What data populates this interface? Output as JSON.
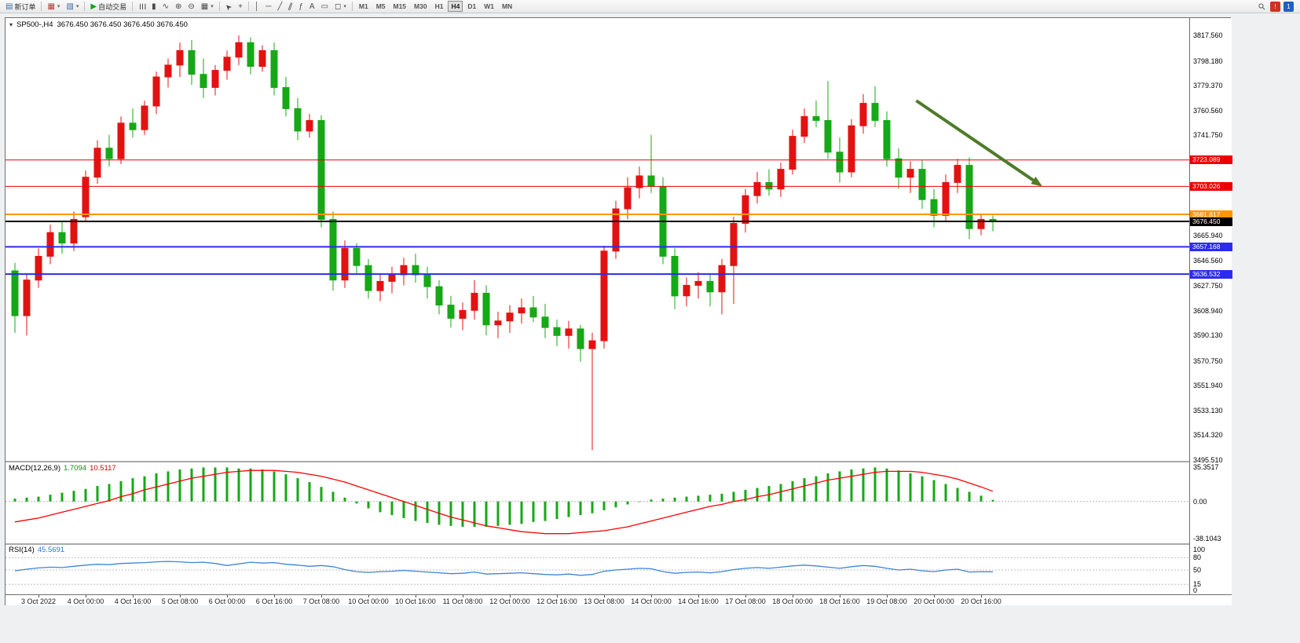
{
  "toolbar": {
    "items": [
      {
        "type": "button",
        "name": "new-order",
        "glyph": "▤",
        "glyph_color": "#3a6ea5",
        "label": "新订单"
      },
      {
        "type": "sep"
      },
      {
        "type": "button",
        "name": "new-chart",
        "glyph": "▦",
        "glyph_color": "#b03a2e",
        "dropdown": true
      },
      {
        "type": "button",
        "name": "profiles",
        "glyph": "▧",
        "glyph_color": "#3a6ea5",
        "dropdown": true
      },
      {
        "type": "sep"
      },
      {
        "type": "button",
        "name": "autotrading",
        "glyph": "▶",
        "glyph_color": "#18a018",
        "label": "自动交易"
      },
      {
        "type": "sep"
      },
      {
        "type": "button",
        "name": "bar-chart-mode",
        "glyph": "☰",
        "rot": 90
      },
      {
        "type": "button",
        "name": "candlestick-mode",
        "glyph": "▮"
      },
      {
        "type": "button",
        "name": "line-chart-mode",
        "glyph": "∿"
      },
      {
        "type": "button",
        "name": "zoom-in",
        "glyph": "⊕"
      },
      {
        "type": "button",
        "name": "zoom-out",
        "glyph": "⊖"
      },
      {
        "type": "button",
        "name": "tile-windows",
        "glyph": "▦",
        "dropdown": true
      },
      {
        "type": "sep"
      },
      {
        "type": "button",
        "name": "cursor",
        "glyph": "➤",
        "rot": -135
      },
      {
        "type": "button",
        "name": "crosshair",
        "glyph": "+"
      },
      {
        "type": "sep"
      },
      {
        "type": "button",
        "name": "vertical-line",
        "glyph": "│"
      },
      {
        "type": "button",
        "name": "horizontal-line",
        "glyph": "─"
      },
      {
        "type": "button",
        "name": "trendline",
        "glyph": "╱"
      },
      {
        "type": "button",
        "name": "equidistant-channel",
        "glyph": "∥",
        "rot": 20
      },
      {
        "type": "button",
        "name": "fibonacci",
        "glyph": "ƒ"
      },
      {
        "type": "button",
        "name": "text",
        "glyph": "A"
      },
      {
        "type": "button",
        "name": "text-label",
        "glyph": "▭"
      },
      {
        "type": "button",
        "name": "shapes",
        "glyph": "◻",
        "dropdown": true
      },
      {
        "type": "sep"
      }
    ],
    "timeframes": [
      "M1",
      "M5",
      "M15",
      "M30",
      "H1",
      "H4",
      "D1",
      "W1",
      "MN"
    ],
    "active_timeframe": "H4",
    "right_icons": [
      {
        "name": "search",
        "glyph": "⚲",
        "color": "#555"
      },
      {
        "name": "alert-red",
        "glyph": "!",
        "bg": "#d03020"
      },
      {
        "name": "community-blue",
        "glyph": "1",
        "bg": "#2060c0"
      }
    ]
  },
  "chart": {
    "title": "SP500-,H4",
    "ohlc_text": "3676.450 3676.450 3676.450 3676.450",
    "collapse_glyph": "▾"
  },
  "price_axis": {
    "grid_labels": [
      {
        "text": "3817.560",
        "price": 3817.56
      },
      {
        "text": "3798.180",
        "price": 3798.18
      },
      {
        "text": "3779.370",
        "price": 3779.37
      },
      {
        "text": "3760.560",
        "price": 3760.56
      },
      {
        "text": "3741.750",
        "price": 3741.75
      },
      {
        "text": "3665.940",
        "price": 3665.94
      },
      {
        "text": "3646.560",
        "price": 3646.56
      },
      {
        "text": "3627.750",
        "price": 3627.75
      },
      {
        "text": "3608.940",
        "price": 3608.94
      },
      {
        "text": "3590.130",
        "price": 3590.13
      },
      {
        "text": "3570.750",
        "price": 3570.75
      },
      {
        "text": "3551.940",
        "price": 3551.94
      },
      {
        "text": "3533.130",
        "price": 3533.13
      },
      {
        "text": "3514.320",
        "price": 3514.32
      },
      {
        "text": "3495.510",
        "price": 3495.51
      }
    ],
    "badges": [
      {
        "text": "3723.089",
        "price": 3723.089,
        "bg": "#ee0000"
      },
      {
        "text": "3703.026",
        "price": 3703.026,
        "bg": "#ee0000"
      },
      {
        "text": "3681.817",
        "price": 3681.817,
        "bg": "#ff9500"
      },
      {
        "text": "3676.450",
        "price": 3676.45,
        "bg": "#000000"
      },
      {
        "text": "3657.168",
        "price": 3657.168,
        "bg": "#2b2bef"
      },
      {
        "text": "3636.532",
        "price": 3636.532,
        "bg": "#2b2bef"
      }
    ]
  },
  "time_axis": {
    "labels": [
      {
        "text": "3 Oct 2022",
        "index": 2
      },
      {
        "text": "4 Oct 00:00",
        "index": 6
      },
      {
        "text": "4 Oct 16:00",
        "index": 10
      },
      {
        "text": "5 Oct 08:00",
        "index": 14
      },
      {
        "text": "6 Oct 00:00",
        "index": 18
      },
      {
        "text": "6 Oct 16:00",
        "index": 22
      },
      {
        "text": "7 Oct 08:00",
        "index": 26
      },
      {
        "text": "10 Oct 00:00",
        "index": 30
      },
      {
        "text": "10 Oct 16:00",
        "index": 34
      },
      {
        "text": "11 Oct 08:00",
        "index": 38
      },
      {
        "text": "12 Oct 00:00",
        "index": 42
      },
      {
        "text": "12 Oct 16:00",
        "index": 46
      },
      {
        "text": "13 Oct 08:00",
        "index": 50
      },
      {
        "text": "14 Oct 00:00",
        "index": 54
      },
      {
        "text": "14 Oct 16:00",
        "index": 58
      },
      {
        "text": "17 Oct 08:00",
        "index": 62
      },
      {
        "text": "18 Oct 00:00",
        "index": 66
      },
      {
        "text": "18 Oct 16:00",
        "index": 70
      },
      {
        "text": "19 Oct 08:00",
        "index": 74
      },
      {
        "text": "20 Oct 00:00",
        "index": 78
      },
      {
        "text": "20 Oct 16:00",
        "index": 82
      }
    ]
  },
  "chart_data": [
    {
      "type": "candlestick",
      "symbol": "SP500-",
      "timeframe": "H4",
      "current_price": 3676.45,
      "ylim": [
        3495.51,
        3817.56
      ],
      "up_color": "#e31212",
      "down_color": "#16a816",
      "ohlc": [
        [
          3639,
          3645,
          3592,
          3605
        ],
        [
          3605,
          3636,
          3590,
          3632
        ],
        [
          3632,
          3656,
          3626,
          3650
        ],
        [
          3650,
          3674,
          3644,
          3668
        ],
        [
          3668,
          3676,
          3652,
          3660
        ],
        [
          3660,
          3684,
          3654,
          3678
        ],
        [
          3680,
          3715,
          3676,
          3710
        ],
        [
          3710,
          3738,
          3705,
          3732
        ],
        [
          3732,
          3742,
          3718,
          3724
        ],
        [
          3724,
          3756,
          3720,
          3751
        ],
        [
          3751,
          3762,
          3740,
          3746
        ],
        [
          3746,
          3768,
          3742,
          3764
        ],
        [
          3764,
          3790,
          3758,
          3786
        ],
        [
          3786,
          3800,
          3778,
          3795
        ],
        [
          3795,
          3812,
          3786,
          3806
        ],
        [
          3806,
          3814,
          3780,
          3788
        ],
        [
          3788,
          3800,
          3770,
          3778
        ],
        [
          3778,
          3795,
          3772,
          3791
        ],
        [
          3791,
          3806,
          3784,
          3801
        ],
        [
          3801,
          3817.5,
          3795,
          3812
        ],
        [
          3812,
          3816,
          3788,
          3794
        ],
        [
          3794,
          3810,
          3790,
          3806
        ],
        [
          3806,
          3812,
          3772,
          3778
        ],
        [
          3778,
          3786,
          3756,
          3762
        ],
        [
          3762,
          3770,
          3738,
          3745
        ],
        [
          3745,
          3758,
          3740,
          3753
        ],
        [
          3753,
          3757,
          3672,
          3678
        ],
        [
          3678,
          3684,
          3624,
          3632
        ],
        [
          3632,
          3662,
          3626,
          3656
        ],
        [
          3656,
          3660,
          3636,
          3643
        ],
        [
          3643,
          3648,
          3618,
          3624
        ],
        [
          3624,
          3636,
          3616,
          3631
        ],
        [
          3631,
          3642,
          3622,
          3636
        ],
        [
          3636,
          3649,
          3628,
          3643
        ],
        [
          3643,
          3652,
          3630,
          3636
        ],
        [
          3636,
          3642,
          3618,
          3627
        ],
        [
          3627,
          3632,
          3606,
          3613
        ],
        [
          3613,
          3620,
          3596,
          3603
        ],
        [
          3603,
          3615,
          3594,
          3609
        ],
        [
          3609,
          3632,
          3602,
          3622
        ],
        [
          3622,
          3628,
          3590,
          3598
        ],
        [
          3598,
          3608,
          3588,
          3601
        ],
        [
          3601,
          3613,
          3592,
          3607
        ],
        [
          3607,
          3618,
          3599,
          3611
        ],
        [
          3611,
          3620,
          3600,
          3604
        ],
        [
          3604,
          3614,
          3588,
          3596
        ],
        [
          3596,
          3602,
          3582,
          3590
        ],
        [
          3590,
          3601,
          3580,
          3595
        ],
        [
          3595,
          3598,
          3570,
          3580
        ],
        [
          3580,
          3592,
          3503,
          3586
        ],
        [
          3586,
          3658,
          3580,
          3654
        ],
        [
          3654,
          3692,
          3648,
          3686
        ],
        [
          3686,
          3710,
          3678,
          3702
        ],
        [
          3702,
          3718,
          3694,
          3711
        ],
        [
          3711,
          3742,
          3698,
          3703
        ],
        [
          3703,
          3710,
          3644,
          3650
        ],
        [
          3650,
          3656,
          3610,
          3620
        ],
        [
          3620,
          3634,
          3612,
          3628
        ],
        [
          3628,
          3638,
          3618,
          3631
        ],
        [
          3631,
          3636,
          3612,
          3623
        ],
        [
          3623,
          3648,
          3606,
          3643
        ],
        [
          3643,
          3680,
          3614,
          3675
        ],
        [
          3675,
          3701,
          3668,
          3696
        ],
        [
          3696,
          3714,
          3690,
          3706
        ],
        [
          3706,
          3716,
          3696,
          3701
        ],
        [
          3701,
          3721,
          3695,
          3716
        ],
        [
          3716,
          3746,
          3712,
          3741
        ],
        [
          3741,
          3762,
          3736,
          3756
        ],
        [
          3756,
          3768,
          3748,
          3753
        ],
        [
          3753,
          3783,
          3724,
          3729
        ],
        [
          3729,
          3740,
          3706,
          3714
        ],
        [
          3714,
          3754,
          3710,
          3749
        ],
        [
          3749,
          3773,
          3743,
          3766
        ],
        [
          3766,
          3779,
          3748,
          3753
        ],
        [
          3753,
          3760,
          3718,
          3724
        ],
        [
          3724,
          3732,
          3701,
          3710
        ],
        [
          3710,
          3722,
          3698,
          3716
        ],
        [
          3716,
          3723,
          3686,
          3693
        ],
        [
          3693,
          3701,
          3672,
          3681
        ],
        [
          3681,
          3712,
          3676,
          3706
        ],
        [
          3706,
          3724,
          3698,
          3719
        ],
        [
          3719,
          3725,
          3663,
          3671
        ],
        [
          3671,
          3682,
          3666,
          3678
        ],
        [
          3678,
          3681,
          3669,
          3676.45
        ]
      ],
      "levels": [
        {
          "name": "resistance-line-1",
          "price": 3723.089,
          "color": "#ee0000",
          "width": 1
        },
        {
          "name": "resistance-line-2",
          "price": 3703.026,
          "color": "#ee0000",
          "width": 1
        },
        {
          "name": "pivot-line",
          "price": 3681.817,
          "color": "#ff9500",
          "width": 2
        },
        {
          "name": "current-price-line",
          "price": 3676.45,
          "color": "#000000",
          "width": 2
        },
        {
          "name": "support-line-1",
          "price": 3657.168,
          "color": "#2b2bef",
          "width": 2
        },
        {
          "name": "support-line-2",
          "price": 3636.532,
          "color": "#2b2bef",
          "width": 2
        }
      ],
      "arrow": {
        "x1_index": 76.5,
        "y1_price": 3768,
        "x2_index": 87.2,
        "y2_price": 3703,
        "color": "#4e7b2a",
        "width": 4
      }
    },
    {
      "type": "bar+line",
      "name": "MACD(12,26,9)",
      "main_value": "1.7094",
      "signal_value": "10.5117",
      "ylim": [
        -38.1043,
        35.3517
      ],
      "histogram_color": "#16a816",
      "signal_color": "#ff0000",
      "axis": [
        {
          "text": "35.3517",
          "value": 35.3517
        },
        {
          "text": "0.00",
          "value": 0
        },
        {
          "text": "-38.1043",
          "value": -38.1043
        }
      ],
      "histogram": [
        3,
        4,
        5,
        7,
        9,
        11,
        13,
        16,
        18,
        21,
        24,
        26,
        29,
        31,
        33,
        34,
        35,
        35,
        35,
        34,
        34,
        33,
        31,
        28,
        24,
        20,
        15,
        10,
        4,
        -2,
        -7,
        -11,
        -14,
        -17,
        -20,
        -22,
        -24,
        -25,
        -26,
        -26,
        -26,
        -25,
        -24,
        -23,
        -21,
        -20,
        -18,
        -16,
        -14,
        -12,
        -9,
        -6,
        -3,
        0,
        2,
        3,
        4,
        5,
        6,
        7,
        8,
        10,
        12,
        14,
        16,
        18,
        21,
        24,
        26,
        29,
        31,
        33,
        34,
        35,
        34,
        32,
        29,
        26,
        22,
        18,
        14,
        10,
        6,
        1.7094
      ],
      "signal": [
        -21,
        -19,
        -17,
        -14,
        -11,
        -8,
        -5,
        -2,
        1,
        5,
        8,
        12,
        15,
        18,
        21,
        24,
        26,
        28,
        30,
        31,
        32,
        32,
        32,
        31,
        30,
        28,
        26,
        23,
        20,
        16,
        12,
        8,
        4,
        0,
        -4,
        -8,
        -12,
        -16,
        -19,
        -22,
        -25,
        -27,
        -29,
        -31,
        -32,
        -33,
        -33,
        -33,
        -32,
        -31,
        -30,
        -28,
        -26,
        -23,
        -20,
        -17,
        -14,
        -11,
        -8,
        -5,
        -3,
        0,
        2,
        5,
        7,
        10,
        13,
        16,
        19,
        22,
        24,
        26,
        28,
        30,
        31,
        31,
        31,
        30,
        28,
        26,
        23,
        19,
        15,
        10.5117
      ]
    },
    {
      "type": "line",
      "name": "RSI(14)",
      "value": "45.5691",
      "ylim": [
        0,
        100
      ],
      "line_color": "#3d85d8",
      "level_lines": [
        80,
        50,
        15
      ],
      "axis": [
        {
          "text": "100",
          "value": 100
        },
        {
          "text": "80",
          "value": 80
        },
        {
          "text": "50",
          "value": 50
        },
        {
          "text": "15",
          "value": 15
        },
        {
          "text": "0",
          "value": 0
        }
      ],
      "values": [
        48,
        52,
        55,
        57,
        56,
        59,
        62,
        64,
        63,
        66,
        67,
        68,
        70,
        71,
        70,
        68,
        69,
        66,
        61,
        65,
        69,
        67,
        68,
        64,
        62,
        59,
        61,
        58,
        51,
        46,
        44,
        46,
        47,
        49,
        47,
        45,
        43,
        41,
        42,
        45,
        40,
        41,
        42,
        43,
        41,
        39,
        38,
        40,
        37,
        39,
        47,
        50,
        52,
        54,
        53,
        46,
        42,
        44,
        45,
        43,
        46,
        51,
        54,
        56,
        54,
        57,
        60,
        62,
        60,
        57,
        54,
        58,
        61,
        59,
        54,
        50,
        52,
        48,
        46,
        50,
        52,
        45,
        46,
        45.5691
      ]
    }
  ]
}
